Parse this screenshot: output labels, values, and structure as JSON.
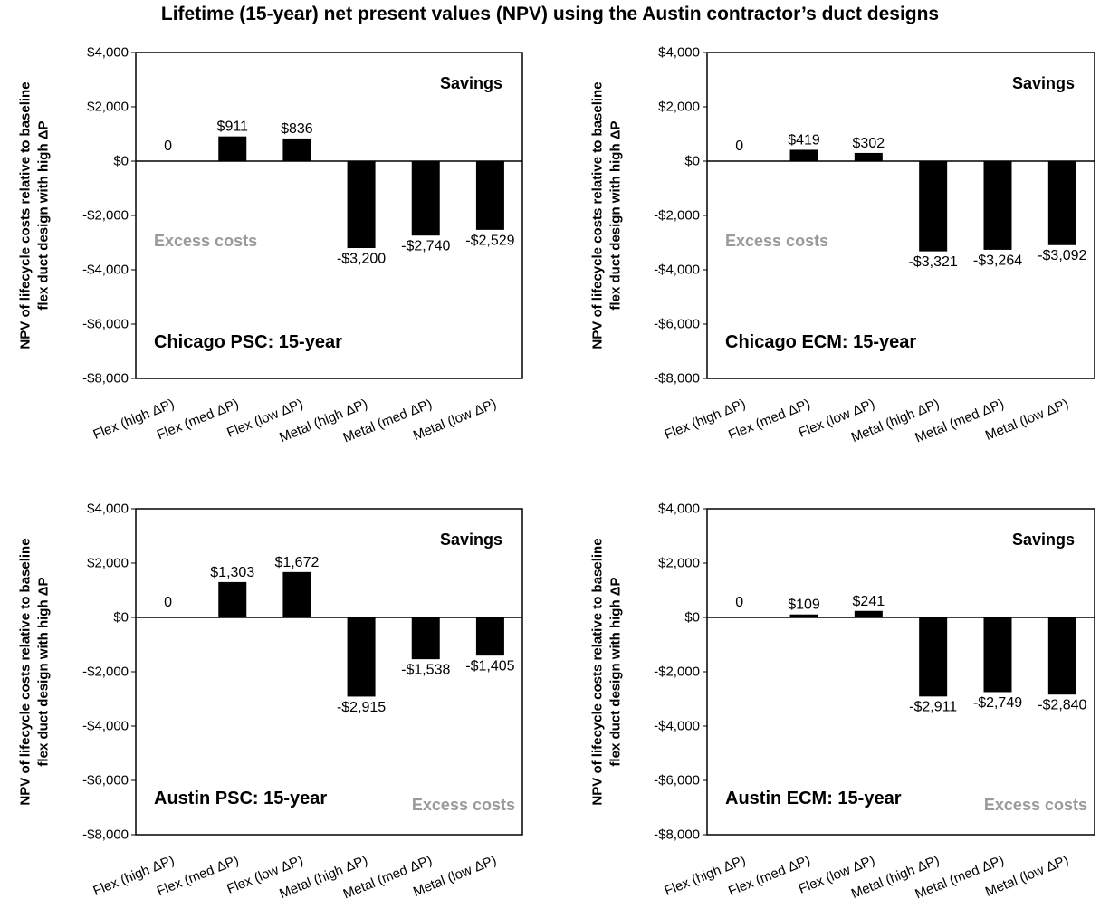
{
  "title": "Lifetime (15-year) net present values (NPV) using the Austin contractor’s duct designs",
  "chart_data": [
    {
      "type": "bar",
      "panel_label": "Chicago PSC: 15-year",
      "ylabel": [
        "NPV of lifecycle costs relative to baseline",
        "flex duct design with high ΔP"
      ],
      "ylim": [
        -8000,
        4000
      ],
      "yticks": [
        4000,
        2000,
        0,
        -2000,
        -4000,
        -6000,
        -8000
      ],
      "ytick_labels": [
        "$4,000",
        "$2,000",
        "$0",
        "-$2,000",
        "-$4,000",
        "-$6,000",
        "-$8,000"
      ],
      "categories": [
        "Flex (high ΔP)",
        "Flex (med ΔP)",
        "Flex (low ΔP)",
        "Metal (high ΔP)",
        "Metal (med ΔP)",
        "Metal (low ΔP)"
      ],
      "values": [
        0,
        911,
        836,
        -3200,
        -2740,
        -2529
      ],
      "data_labels": [
        "0",
        "$911",
        "$836",
        "-$3,200",
        "-$2,740",
        "-$2,529"
      ],
      "savings_label": "Savings",
      "excess_label": "Excess costs",
      "excess_position": "upper-left"
    },
    {
      "type": "bar",
      "panel_label": "Chicago ECM: 15-year",
      "ylabel": [
        "NPV of lifecycle costs relative to baseline",
        "flex duct design with high ΔP"
      ],
      "ylim": [
        -8000,
        4000
      ],
      "yticks": [
        4000,
        2000,
        0,
        -2000,
        -4000,
        -6000,
        -8000
      ],
      "ytick_labels": [
        "$4,000",
        "$2,000",
        "$0",
        "-$2,000",
        "-$4,000",
        "-$6,000",
        "-$8,000"
      ],
      "categories": [
        "Flex (high ΔP)",
        "Flex (med ΔP)",
        "Flex (low ΔP)",
        "Metal (high ΔP)",
        "Metal (med ΔP)",
        "Metal (low ΔP)"
      ],
      "values": [
        0,
        419,
        302,
        -3321,
        -3264,
        -3092
      ],
      "data_labels": [
        "0",
        "$419",
        "$302",
        "-$3,321",
        "-$3,264",
        "-$3,092"
      ],
      "savings_label": "Savings",
      "excess_label": "Excess costs",
      "excess_position": "upper-left"
    },
    {
      "type": "bar",
      "panel_label": "Austin PSC: 15-year",
      "ylabel": [
        "NPV of lifecycle costs relative to baseline",
        "flex duct design with high ΔP"
      ],
      "ylim": [
        -8000,
        4000
      ],
      "yticks": [
        4000,
        2000,
        0,
        -2000,
        -4000,
        -6000,
        -8000
      ],
      "ytick_labels": [
        "$4,000",
        "$2,000",
        "$0",
        "-$2,000",
        "-$4,000",
        "-$6,000",
        "-$8,000"
      ],
      "categories": [
        "Flex (high ΔP)",
        "Flex (med ΔP)",
        "Flex (low ΔP)",
        "Metal (high ΔP)",
        "Metal (med ΔP)",
        "Metal (low ΔP)"
      ],
      "values": [
        0,
        1303,
        1672,
        -2915,
        -1538,
        -1405
      ],
      "data_labels": [
        "0",
        "$1,303",
        "$1,672",
        "-$2,915",
        "-$1,538",
        "-$1,405"
      ],
      "savings_label": "Savings",
      "excess_label": "Excess costs",
      "excess_position": "lower-right"
    },
    {
      "type": "bar",
      "panel_label": "Austin ECM: 15-year",
      "ylabel": [
        "NPV of lifecycle costs relative to baseline",
        "flex duct design with high ΔP"
      ],
      "ylim": [
        -8000,
        4000
      ],
      "yticks": [
        4000,
        2000,
        0,
        -2000,
        -4000,
        -6000,
        -8000
      ],
      "ytick_labels": [
        "$4,000",
        "$2,000",
        "$0",
        "-$2,000",
        "-$4,000",
        "-$6,000",
        "-$8,000"
      ],
      "categories": [
        "Flex (high ΔP)",
        "Flex (med ΔP)",
        "Flex (low ΔP)",
        "Metal (high ΔP)",
        "Metal (med ΔP)",
        "Metal (low ΔP)"
      ],
      "values": [
        0,
        109,
        241,
        -2911,
        -2749,
        -2840
      ],
      "data_labels": [
        "0",
        "$109",
        "$241",
        "-$2,911",
        "-$2,749",
        "-$2,840"
      ],
      "savings_label": "Savings",
      "excess_label": "Excess costs",
      "excess_position": "lower-right"
    }
  ],
  "colors": {
    "bar": "#000000",
    "excess_label": "#9a9a9a",
    "axis": "#000000"
  }
}
